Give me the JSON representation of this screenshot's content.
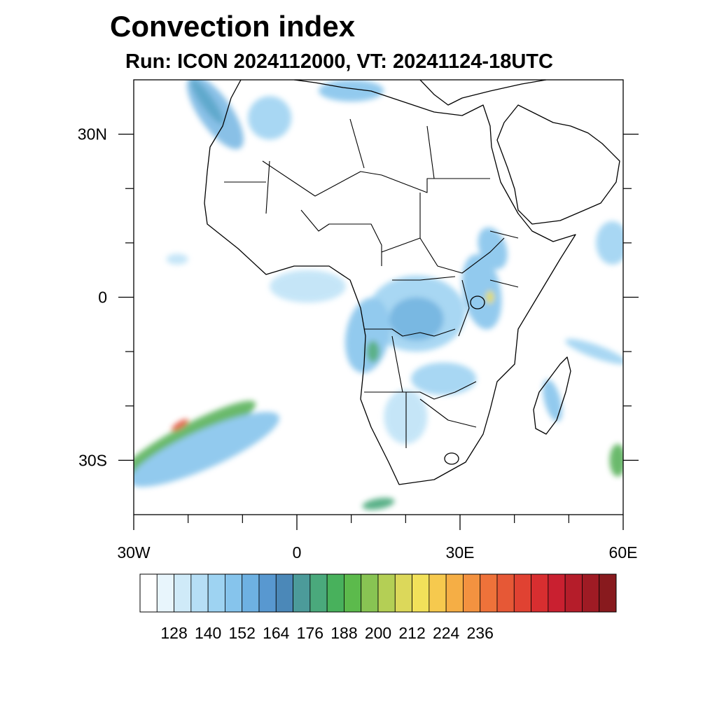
{
  "title": "Convection index",
  "subtitle": "Run: ICON 2024112000,  VT: 20241124-18UTC",
  "map": {
    "lon_range": [
      -30,
      60
    ],
    "lat_range": [
      -40,
      40
    ],
    "x_ticks": [
      {
        "value": -30,
        "label": "30W"
      },
      {
        "value": 0,
        "label": "0"
      },
      {
        "value": 30,
        "label": "30E"
      },
      {
        "value": 60,
        "label": "60E"
      }
    ],
    "x_minor_ticks": [
      -20,
      -10,
      10,
      20,
      40,
      50
    ],
    "y_ticks": [
      {
        "value": 30,
        "label": "30N"
      },
      {
        "value": 0,
        "label": "0"
      },
      {
        "value": -30,
        "label": "30S"
      }
    ],
    "y_minor_ticks": [
      20,
      10,
      -10,
      -20
    ]
  },
  "colorbar": {
    "labels": [
      "128",
      "140",
      "152",
      "164",
      "176",
      "188",
      "200",
      "212",
      "224",
      "236"
    ],
    "label_start_index": 2,
    "label_step": 2,
    "colors": [
      "#ffffff",
      "#e8f5fc",
      "#cfeaf8",
      "#b6def5",
      "#9ed3f2",
      "#86c4ec",
      "#6eb1e2",
      "#5898d0",
      "#4b88b8",
      "#4c9b9a",
      "#4aa97c",
      "#48b15c",
      "#5cba4c",
      "#88c453",
      "#b4cf55",
      "#dcd85a",
      "#f2e15a",
      "#f6c94e",
      "#f5ae45",
      "#f39240",
      "#ee723a",
      "#e65836",
      "#e04232",
      "#d82e30",
      "#c92030",
      "#b51d2a",
      "#9f1b24",
      "#881a1e"
    ]
  },
  "blobs": [
    {
      "name": "north-atlantic-band",
      "color": "#7bb9e4",
      "lon": -15,
      "lat": 34,
      "rx": 3,
      "ry": 8,
      "rot": 35
    },
    {
      "name": "north-atlantic-band-core",
      "color": "#4fa0c8",
      "lon": -16.5,
      "lat": 36,
      "rx": 1.2,
      "ry": 5,
      "rot": 35
    },
    {
      "name": "morocco-north",
      "color": "#9fd3f2",
      "lon": -5,
      "lat": 33,
      "rx": 4,
      "ry": 4,
      "rot": 0
    },
    {
      "name": "gulf-of-guinea",
      "color": "#bfe3f7",
      "lon": 2,
      "lat": 2,
      "rx": 7,
      "ry": 3,
      "rot": 0
    },
    {
      "name": "central-africa",
      "color": "#9fd3f2",
      "lon": 22,
      "lat": -3,
      "rx": 9,
      "ry": 7,
      "rot": 0
    },
    {
      "name": "central-africa-core",
      "color": "#6ab0df",
      "lon": 22,
      "lat": -4,
      "rx": 5,
      "ry": 4,
      "rot": 0
    },
    {
      "name": "angola-coast",
      "color": "#86c4ec",
      "lon": 13,
      "lat": -7,
      "rx": 4,
      "ry": 7,
      "rot": -10
    },
    {
      "name": "angola-green",
      "color": "#4aa97c",
      "lon": 14,
      "lat": -10,
      "rx": 1.2,
      "ry": 2,
      "rot": 0
    },
    {
      "name": "east-africa-highlands",
      "color": "#86c4ec",
      "lon": 34,
      "lat": 1,
      "rx": 3.5,
      "ry": 7,
      "rot": 10
    },
    {
      "name": "ethiopia",
      "color": "#86c4ec",
      "lon": 36,
      "lat": 9,
      "rx": 2.5,
      "ry": 4,
      "rot": 20
    },
    {
      "name": "lake-victoria-core",
      "color": "#dcd85a",
      "lon": 35.5,
      "lat": 0,
      "rx": 0.8,
      "ry": 1.2,
      "rot": 0
    },
    {
      "name": "zambia",
      "color": "#9fd3f2",
      "lon": 27,
      "lat": -15,
      "rx": 6,
      "ry": 3,
      "rot": 0
    },
    {
      "name": "namibia-botswana",
      "color": "#bfe3f7",
      "lon": 20,
      "lat": -22,
      "rx": 4,
      "ry": 5,
      "rot": 0
    },
    {
      "name": "south-atlantic-band",
      "color": "#5ab25c",
      "lon": -20,
      "lat": -26,
      "rx": 14,
      "ry": 2.5,
      "rot": 28
    },
    {
      "name": "south-atlantic-band-outer",
      "color": "#86c4ec",
      "lon": -17,
      "lat": -28,
      "rx": 15,
      "ry": 3.5,
      "rot": 24
    },
    {
      "name": "south-atlantic-core",
      "color": "#e3503a",
      "lon": -21.5,
      "lat": -23.5,
      "rx": 1.8,
      "ry": 0.6,
      "rot": 32
    },
    {
      "name": "madagascar",
      "color": "#86c4ec",
      "lon": 47,
      "lat": -19,
      "rx": 1.5,
      "ry": 4,
      "rot": 15
    },
    {
      "name": "indian-ocean-band",
      "color": "#9fd3f2",
      "lon": 55,
      "lat": -10,
      "rx": 6,
      "ry": 1.2,
      "rot": -20
    },
    {
      "name": "indian-ocean-east",
      "color": "#5ab25c",
      "lon": 59,
      "lat": -30,
      "rx": 1.5,
      "ry": 3,
      "rot": 0
    },
    {
      "name": "mediterranean",
      "color": "#86c4ec",
      "lon": 10,
      "lat": 38,
      "rx": 6,
      "ry": 2,
      "rot": 0
    },
    {
      "name": "arabian-east",
      "color": "#9fd3f2",
      "lon": 58,
      "lat": 10,
      "rx": 3,
      "ry": 4,
      "rot": 0
    },
    {
      "name": "south-of-cape",
      "color": "#4aa97c",
      "lon": 15,
      "lat": -38,
      "rx": 3,
      "ry": 1,
      "rot": 10
    },
    {
      "name": "atlantic-equatorial",
      "color": "#bfe3f7",
      "lon": -22,
      "lat": 7,
      "rx": 2,
      "ry": 1,
      "rot": 0
    }
  ]
}
